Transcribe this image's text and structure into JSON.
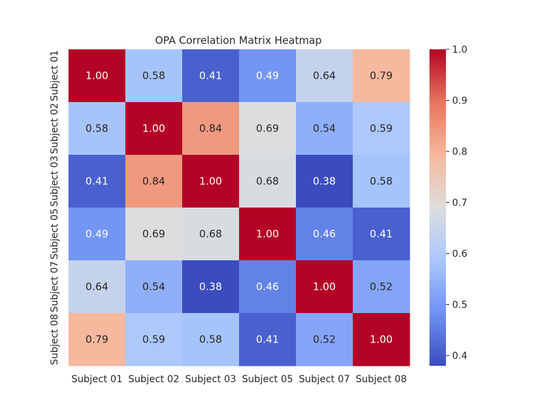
{
  "chart_data": {
    "type": "heatmap",
    "title": "OPA Correlation Matrix Heatmap",
    "x_categories": [
      "Subject 01",
      "Subject 02",
      "Subject 03",
      "Subject 05",
      "Subject 07",
      "Subject 08"
    ],
    "y_categories": [
      "Subject 01",
      "Subject 02",
      "Subject 03",
      "Subject 05",
      "Subject 07",
      "Subject 08"
    ],
    "matrix": [
      [
        1.0,
        0.58,
        0.41,
        0.49,
        0.64,
        0.79
      ],
      [
        0.58,
        1.0,
        0.84,
        0.69,
        0.54,
        0.59
      ],
      [
        0.41,
        0.84,
        1.0,
        0.68,
        0.38,
        0.58
      ],
      [
        0.49,
        0.69,
        0.68,
        1.0,
        0.46,
        0.41
      ],
      [
        0.64,
        0.54,
        0.38,
        0.46,
        1.0,
        0.52
      ],
      [
        0.79,
        0.59,
        0.58,
        0.41,
        0.52,
        1.0
      ]
    ],
    "annotation_format": "0.00",
    "colormap": "coolwarm",
    "colormap_stops": [
      "#3b4cc0",
      "#6f92f3",
      "#aac7fd",
      "#dddddd",
      "#f7b89c",
      "#e7745b",
      "#b40426"
    ],
    "colorbar": {
      "min": 0.38,
      "max": 1.0,
      "ticks": [
        "0.4",
        "0.5",
        "0.6",
        "0.7",
        "0.8",
        "0.9",
        "1.0"
      ]
    }
  }
}
